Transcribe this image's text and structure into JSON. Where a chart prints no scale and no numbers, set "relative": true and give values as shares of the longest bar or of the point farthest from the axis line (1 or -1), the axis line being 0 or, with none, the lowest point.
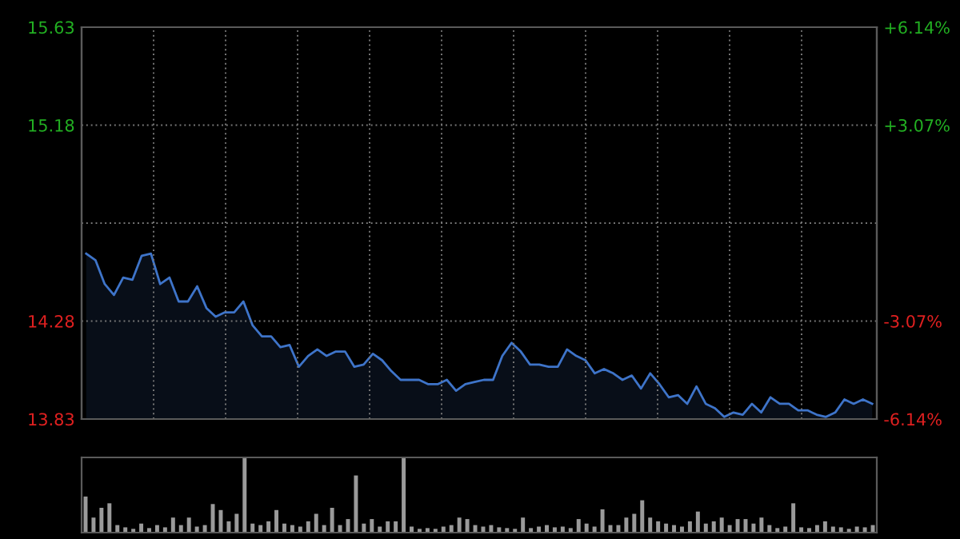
{
  "chart_data": [
    {
      "type": "area",
      "categories": [
        null,
        null,
        null,
        null,
        null,
        null,
        null,
        null,
        null,
        null,
        null,
        null,
        null,
        null,
        null,
        null,
        null,
        null,
        null,
        null,
        null,
        null,
        null,
        null,
        null,
        null,
        null,
        null,
        null,
        null,
        null,
        null,
        null,
        null,
        null,
        null,
        null,
        null,
        null,
        null,
        null,
        null,
        null,
        null,
        null,
        null,
        null,
        null,
        null,
        null,
        null,
        null,
        null,
        null,
        null,
        null,
        null,
        null,
        null,
        null,
        null,
        null,
        null,
        null,
        null,
        null,
        null,
        null,
        null,
        null,
        null,
        null,
        null,
        null,
        null,
        null,
        null,
        null,
        null,
        null,
        null,
        null,
        null,
        null,
        null,
        null
      ],
      "series": [
        {
          "color": "#3e74c9",
          "values": [
            14.59,
            14.56,
            14.45,
            14.4,
            14.48,
            14.47,
            14.58,
            14.59,
            14.45,
            14.48,
            14.37,
            14.37,
            14.44,
            14.34,
            14.3,
            14.32,
            14.32,
            14.37,
            14.26,
            14.21,
            14.21,
            14.16,
            14.17,
            14.07,
            14.12,
            14.15,
            14.12,
            14.14,
            14.14,
            14.07,
            14.08,
            14.13,
            14.1,
            14.05,
            14.01,
            14.01,
            14.01,
            13.99,
            13.99,
            14.01,
            13.96,
            13.99,
            14.0,
            14.01,
            14.01,
            14.12,
            14.18,
            14.14,
            14.08,
            14.08,
            14.07,
            14.07,
            14.15,
            14.12,
            14.1,
            14.04,
            14.06,
            14.04,
            14.01,
            14.03,
            13.97,
            14.04,
            13.99,
            13.93,
            13.94,
            13.9,
            13.98,
            13.9,
            13.88,
            13.84,
            13.86,
            13.85,
            13.9,
            13.86,
            13.93,
            13.9,
            13.9,
            13.87,
            13.87,
            13.85,
            13.84,
            13.86,
            13.92,
            13.9,
            13.92,
            13.9
          ]
        }
      ],
      "ylim": [
        13.83,
        15.63
      ],
      "yticks": [
        13.83,
        14.28,
        {
          "value": 14.73,
          "label": null
        },
        15.18,
        15.63
      ],
      "y2lim": [
        -6.14,
        6.14
      ],
      "y2ticks": [
        {
          "value": -6.14,
          "label": "-6.14%"
        },
        {
          "value": -3.07,
          "label": "-3.07%"
        },
        {
          "value": 0,
          "label": null
        },
        {
          "value": 3.07,
          "label": "+3.07%"
        },
        {
          "value": 6.14,
          "label": "+6.14%"
        }
      ],
      "grid": true,
      "tick_labels": "y"
    },
    {
      "type": "bar",
      "relative": true,
      "tick_labels": false,
      "categories": [
        null,
        null,
        null,
        null,
        null,
        null,
        null,
        null,
        null,
        null,
        null,
        null,
        null,
        null,
        null,
        null,
        null,
        null,
        null,
        null,
        null,
        null,
        null,
        null,
        null,
        null,
        null,
        null,
        null,
        null,
        null,
        null,
        null,
        null,
        null,
        null,
        null,
        null,
        null,
        null,
        null,
        null,
        null,
        null,
        null,
        null,
        null,
        null,
        null,
        null,
        null,
        null,
        null,
        null,
        null,
        null,
        null,
        null,
        null,
        null,
        null,
        null,
        null,
        null,
        null,
        null,
        null,
        null,
        null,
        null,
        null,
        null,
        null,
        null,
        null,
        null,
        null,
        null,
        null,
        null,
        null,
        null,
        null,
        null,
        null,
        null,
        null,
        null,
        null,
        null,
        null,
        null,
        null,
        null,
        null,
        null,
        null,
        null,
        null,
        null
      ],
      "series": [
        {
          "color": "#9a9a9a",
          "values": [
            0.48,
            0.2,
            0.33,
            0.39,
            0.1,
            0.07,
            0.05,
            0.12,
            0.06,
            0.1,
            0.07,
            0.2,
            0.1,
            0.2,
            0.08,
            0.1,
            0.38,
            0.3,
            0.15,
            0.25,
            1,
            0.12,
            0.1,
            0.15,
            0.3,
            0.12,
            0.1,
            0.08,
            0.15,
            0.25,
            0.1,
            0.33,
            0.1,
            0.18,
            0.76,
            0.12,
            0.18,
            0.08,
            0.15,
            0.15,
            1,
            0.08,
            0.05,
            0.06,
            0.05,
            0.08,
            0.1,
            0.2,
            0.18,
            0.1,
            0.08,
            0.1,
            0.07,
            0.06,
            0.05,
            0.2,
            0.06,
            0.08,
            0.1,
            0.07,
            0.08,
            0.06,
            0.18,
            0.12,
            0.08,
            0.31,
            0.1,
            0.1,
            0.2,
            0.25,
            0.43,
            0.2,
            0.15,
            0.12,
            0.1,
            0.08,
            0.15,
            0.28,
            0.12,
            0.15,
            0.2,
            0.1,
            0.18,
            0.18,
            0.12,
            0.2,
            0.1,
            0.06,
            0.08,
            0.39,
            0.07,
            0.06,
            0.1,
            0.15,
            0.08,
            0.07,
            0.05,
            0.08,
            0.07,
            0.1
          ]
        }
      ]
    }
  ]
}
